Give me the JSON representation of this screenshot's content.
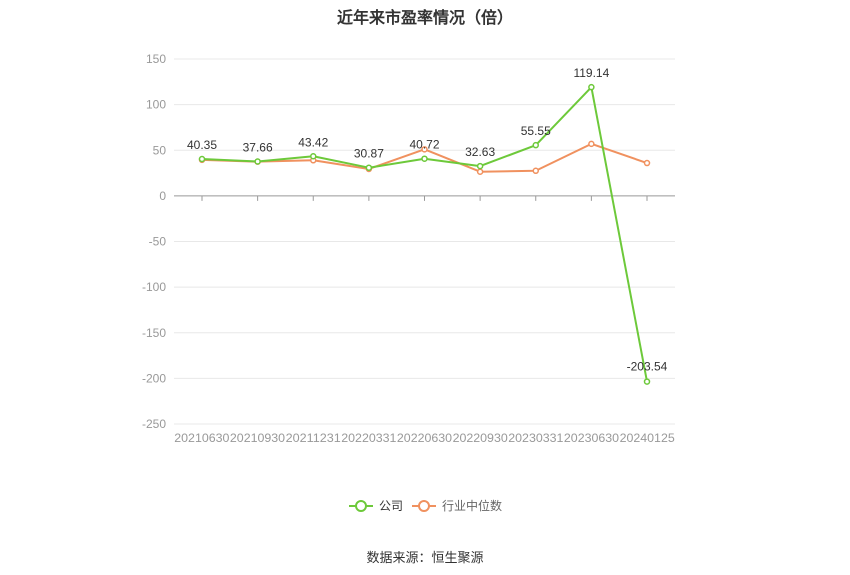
{
  "chart_data": {
    "type": "line",
    "title": "近年来市盈率情况（倍）",
    "x": [
      "20210630",
      "20210930",
      "20211231",
      "20220331",
      "20220630",
      "20220930",
      "20230331",
      "20230630",
      "20240125"
    ],
    "series": [
      {
        "name": "公司",
        "color": "#6dc93a",
        "values": [
          40.35,
          37.66,
          43.42,
          30.87,
          40.72,
          32.63,
          55.55,
          119.14,
          -203.54
        ],
        "labels": [
          "40.35",
          "37.66",
          "43.42",
          "30.87",
          "40.72",
          "32.63",
          "55.55",
          "119.14",
          "-203.54"
        ]
      },
      {
        "name": "行业中位数",
        "color": "#f0915f",
        "values": [
          39.5,
          37.5,
          39.0,
          29.5,
          51.0,
          26.5,
          27.5,
          57.0,
          36.0
        ]
      }
    ],
    "yticks": [
      150,
      100,
      50,
      0,
      -50,
      -100,
      -150,
      -200,
      -250
    ],
    "ylim": [
      -250,
      150
    ],
    "grid": true,
    "legend_position": "bottom"
  },
  "source": "数据来源：恒生聚源"
}
